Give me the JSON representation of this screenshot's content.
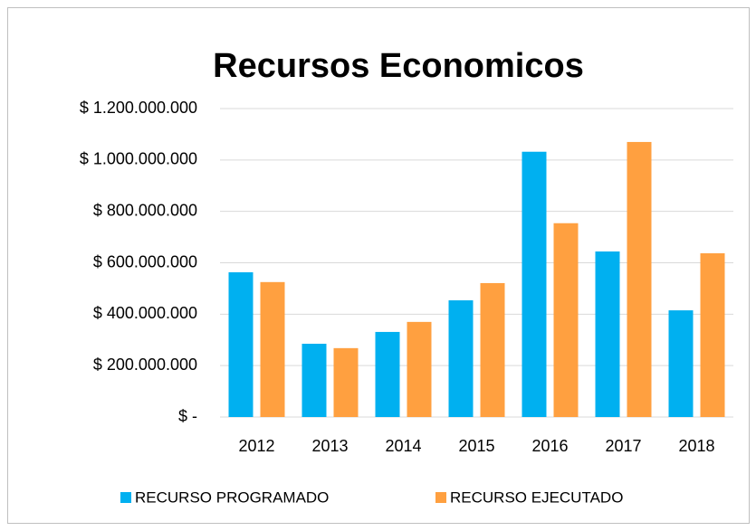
{
  "chart_data": {
    "type": "bar",
    "title": "Recursos Economicos",
    "categories": [
      "2012",
      "2013",
      "2014",
      "2015",
      "2016",
      "2017",
      "2018"
    ],
    "series": [
      {
        "name": "RECURSO PROGRAMADO",
        "color": "#00b0f0",
        "values": [
          563000000,
          285000000,
          331000000,
          454000000,
          1032000000,
          644000000,
          415000000
        ]
      },
      {
        "name": "RECURSO EJECUTADO",
        "color": "#ffa040",
        "values": [
          525000000,
          268000000,
          370000000,
          521000000,
          754000000,
          1070000000,
          637000000
        ]
      }
    ],
    "ylim": [
      0,
      1200000000
    ],
    "yticks": [
      {
        "value": 0,
        "label": "$ -"
      },
      {
        "value": 200000000,
        "label": "$ 200.000.000"
      },
      {
        "value": 400000000,
        "label": "$ 400.000.000"
      },
      {
        "value": 600000000,
        "label": "$ 600.000.000"
      },
      {
        "value": 800000000,
        "label": "$ 800.000.000"
      },
      {
        "value": 1000000000,
        "label": "$ 1.000.000.000"
      },
      {
        "value": 1200000000,
        "label": "$ 1.200.000.000"
      }
    ],
    "grid": true,
    "legend": "bottom"
  }
}
